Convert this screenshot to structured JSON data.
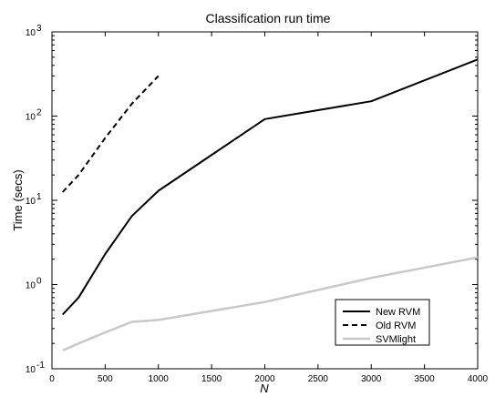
{
  "chart_data": {
    "type": "line",
    "title": "Classification run time",
    "xlabel": "N",
    "ylabel": "Time (secs)",
    "xlim": [
      0,
      4000
    ],
    "ylim": [
      0.1,
      1000
    ],
    "yscale": "log",
    "grid": false,
    "legend_position": "bottom-right",
    "xticks": [
      "0",
      "500",
      "1000",
      "1500",
      "2000",
      "2500",
      "3000",
      "3500",
      "4000"
    ],
    "xtick_values": [
      0,
      500,
      1000,
      1500,
      2000,
      2500,
      3000,
      3500,
      4000
    ],
    "yticks": [
      {
        "base": "10",
        "exp": "-1",
        "value": 0.1
      },
      {
        "base": "10",
        "exp": "0",
        "value": 1
      },
      {
        "base": "10",
        "exp": "1",
        "value": 10
      },
      {
        "base": "10",
        "exp": "2",
        "value": 100
      },
      {
        "base": "10",
        "exp": "3",
        "value": 1000
      }
    ],
    "series": [
      {
        "name": "New RVM",
        "color": "#000000",
        "style": "solid",
        "x": [
          100,
          250,
          500,
          750,
          1000,
          2000,
          3000,
          4000
        ],
        "y": [
          0.44,
          0.7,
          2.3,
          6.5,
          13,
          92,
          150,
          470
        ]
      },
      {
        "name": "Old RVM",
        "color": "#000000",
        "style": "dashed",
        "x": [
          100,
          250,
          500,
          750,
          1000
        ],
        "y": [
          12.5,
          20,
          55,
          140,
          300
        ]
      },
      {
        "name": "SVMlight",
        "color": "#c8c8c8",
        "style": "solid",
        "x": [
          100,
          250,
          500,
          750,
          1000,
          2000,
          3000,
          4000
        ],
        "y": [
          0.165,
          0.2,
          0.27,
          0.36,
          0.38,
          0.62,
          1.2,
          2.1
        ]
      }
    ]
  }
}
